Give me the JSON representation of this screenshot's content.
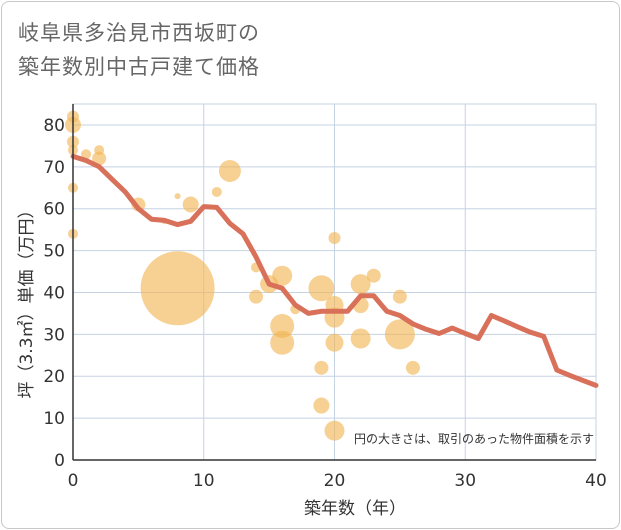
{
  "title_line1": "岐阜県多治見市西坂町の",
  "title_line2": "築年数別中古戸建て価格",
  "chart_data": {
    "type": "scatter",
    "title": "岐阜県多治見市西坂町の築年数別中古戸建て価格",
    "xlabel": "築年数（年）",
    "ylabel": "坪（3.3㎡）単価（万円）",
    "xlim": [
      0,
      40
    ],
    "ylim": [
      0,
      85
    ],
    "x_ticks": [
      "0",
      "10",
      "20",
      "30",
      "40"
    ],
    "y_ticks": [
      "0",
      "10",
      "20",
      "30",
      "40",
      "50",
      "60",
      "70",
      "80"
    ],
    "x_tick_values": [
      0,
      10,
      20,
      30,
      40
    ],
    "y_tick_values": [
      0,
      10,
      20,
      30,
      40,
      50,
      60,
      70,
      80
    ],
    "grid": true,
    "note": "円の大きさは、取引のあった物件面積を示す",
    "colors": {
      "bubble": "#f2b552",
      "line": "#d9705a",
      "grid": "#c5d3e3",
      "axis": "#333333"
    },
    "bubbles": [
      {
        "x": 0,
        "y": 82,
        "s": 6
      },
      {
        "x": 0,
        "y": 80,
        "s": 8
      },
      {
        "x": 0,
        "y": 76,
        "s": 6
      },
      {
        "x": 0,
        "y": 74,
        "s": 5
      },
      {
        "x": 0,
        "y": 65,
        "s": 5
      },
      {
        "x": 0,
        "y": 54,
        "s": 5
      },
      {
        "x": 1,
        "y": 73,
        "s": 5
      },
      {
        "x": 2,
        "y": 74,
        "s": 5
      },
      {
        "x": 2,
        "y": 72,
        "s": 7
      },
      {
        "x": 5,
        "y": 61,
        "s": 7
      },
      {
        "x": 7,
        "y": 57,
        "s": 3
      },
      {
        "x": 8,
        "y": 63,
        "s": 3
      },
      {
        "x": 8,
        "y": 41,
        "s": 37
      },
      {
        "x": 9,
        "y": 61,
        "s": 8
      },
      {
        "x": 11,
        "y": 64,
        "s": 5
      },
      {
        "x": 12,
        "y": 69,
        "s": 11
      },
      {
        "x": 14,
        "y": 46,
        "s": 5
      },
      {
        "x": 14,
        "y": 39,
        "s": 7
      },
      {
        "x": 15,
        "y": 42,
        "s": 9
      },
      {
        "x": 16,
        "y": 44,
        "s": 10
      },
      {
        "x": 16,
        "y": 32,
        "s": 12
      },
      {
        "x": 16,
        "y": 28,
        "s": 12
      },
      {
        "x": 17,
        "y": 36,
        "s": 5
      },
      {
        "x": 19,
        "y": 41,
        "s": 13
      },
      {
        "x": 19,
        "y": 22,
        "s": 7
      },
      {
        "x": 19,
        "y": 13,
        "s": 8
      },
      {
        "x": 20,
        "y": 53,
        "s": 6
      },
      {
        "x": 20,
        "y": 37,
        "s": 9
      },
      {
        "x": 20,
        "y": 34,
        "s": 10
      },
      {
        "x": 20,
        "y": 28,
        "s": 9
      },
      {
        "x": 20,
        "y": 7,
        "s": 10
      },
      {
        "x": 22,
        "y": 42,
        "s": 10
      },
      {
        "x": 22,
        "y": 37,
        "s": 8
      },
      {
        "x": 22,
        "y": 29,
        "s": 10
      },
      {
        "x": 23,
        "y": 44,
        "s": 7
      },
      {
        "x": 25,
        "y": 39,
        "s": 7
      },
      {
        "x": 25,
        "y": 30,
        "s": 15
      },
      {
        "x": 26,
        "y": 22,
        "s": 7
      }
    ],
    "trend": {
      "x": [
        0,
        1,
        2,
        3,
        4,
        5,
        6,
        7,
        8,
        9,
        10,
        11,
        12,
        13,
        14,
        15,
        16,
        17,
        18,
        19,
        20,
        21,
        22,
        23,
        24,
        25,
        26,
        27,
        28,
        29,
        30,
        31,
        32,
        33,
        34,
        35,
        36,
        37,
        38,
        39,
        40
      ],
      "y": [
        72.5,
        71.5,
        70,
        67,
        64,
        60,
        57.5,
        57.2,
        56.2,
        57,
        60.5,
        60.3,
        56.5,
        54,
        48.5,
        42,
        41,
        37,
        35,
        35.5,
        35.5,
        35.5,
        39.2,
        39.2,
        35.5,
        34.5,
        32.5,
        31.2,
        30.2,
        31.5,
        30.2,
        29,
        34.5,
        33.2,
        31.8,
        30.5,
        29.5,
        21.5,
        20.2,
        19,
        17.8
      ]
    }
  }
}
